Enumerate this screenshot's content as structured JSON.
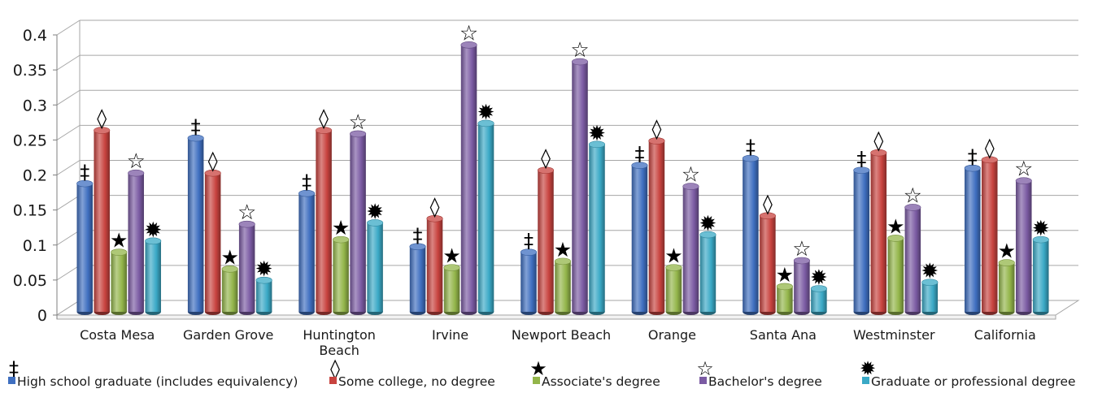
{
  "chart_data": {
    "type": "bar",
    "style": "3d-cylinder",
    "categories": [
      "Costa Mesa",
      "Garden Grove",
      "Huntington Beach",
      "Irvine",
      "Newport Beach",
      "Orange",
      "Santa Ana",
      "Westminster",
      "California"
    ],
    "category_lines": [
      [
        "Costa Mesa"
      ],
      [
        "Garden Grove"
      ],
      [
        "Huntington",
        "Beach"
      ],
      [
        "Irvine"
      ],
      [
        "Newport Beach"
      ],
      [
        "Orange"
      ],
      [
        "Santa Ana"
      ],
      [
        "Westminster"
      ],
      [
        "California"
      ]
    ],
    "ylim": [
      0,
      0.4
    ],
    "yticks": [
      0,
      0.05,
      0.1,
      0.15,
      0.2,
      0.25,
      0.3,
      0.35,
      0.4
    ],
    "ytick_labels": [
      "0",
      "0.05",
      "0.1",
      "0.15",
      "0.2",
      "0.25",
      "0.3",
      "0.35",
      "0.4"
    ],
    "grid": true,
    "legend_position": "bottom",
    "series": [
      {
        "name": "High school graduate (includes equivalency)",
        "marker": "‡",
        "color": "#3f6fc0",
        "values": [
          0.19,
          0.255,
          0.176,
          0.1,
          0.092,
          0.216,
          0.226,
          0.209,
          0.212
        ]
      },
      {
        "name": "Some college, no degree",
        "marker": "◊",
        "color": "#c8433f",
        "values": [
          0.266,
          0.205,
          0.266,
          0.14,
          0.209,
          0.251,
          0.144,
          0.234,
          0.224
        ]
      },
      {
        "name": "Associate's degree",
        "marker": "★",
        "color": "#93b54a",
        "values": [
          0.092,
          0.068,
          0.11,
          0.07,
          0.079,
          0.07,
          0.043,
          0.112,
          0.077
        ]
      },
      {
        "name": "Bachelor's degree",
        "marker": "☆",
        "color": "#7b5ba3",
        "values": [
          0.205,
          0.132,
          0.261,
          0.388,
          0.364,
          0.186,
          0.08,
          0.156,
          0.194
        ]
      },
      {
        "name": "Graduate or professional degree",
        "marker": "✹",
        "color": "#3aa9c6",
        "values": [
          0.108,
          0.052,
          0.134,
          0.276,
          0.246,
          0.117,
          0.04,
          0.049,
          0.11
        ]
      }
    ]
  }
}
